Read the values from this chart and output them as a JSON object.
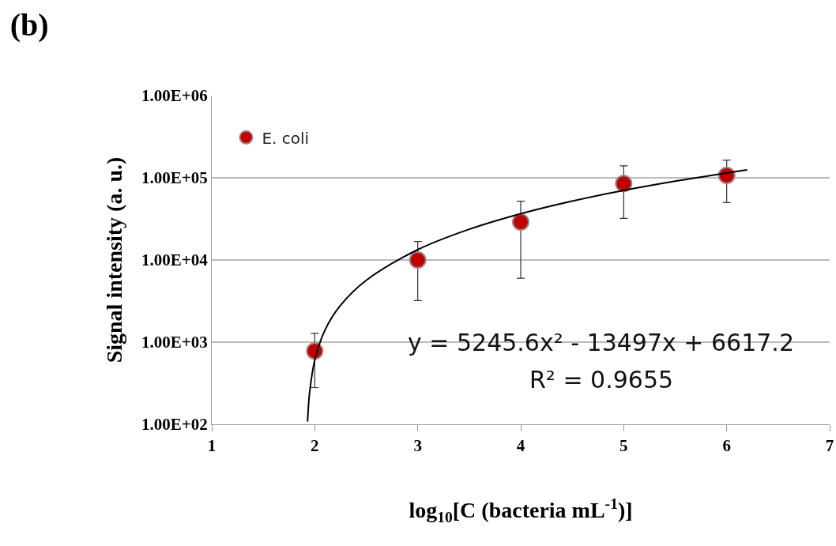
{
  "chart_data": {
    "type": "scatter",
    "title": "(b)",
    "xlabel": "log$_{10}$[C (bacteria mL$^{-1}$)]",
    "ylabel": "Signal intensity (a. u.)",
    "annotations": [
      "y = 5245.6x² - 13497x + 6617.2",
      "R² = 0.9655"
    ],
    "x": [
      2,
      3,
      4,
      5,
      6
    ],
    "series": [
      {
        "name": "E. coli",
        "color": "#c00000",
        "marker": "circle",
        "values": [
          780,
          10000,
          29000,
          85000,
          107000
        ],
        "errors": [
          [
            280,
            1280
          ],
          [
            3200,
            16800
          ],
          [
            6000,
            52000
          ],
          [
            32000,
            140000
          ],
          [
            50000,
            164000
          ]
        ]
      },
      {
        "type": "line",
        "marker": "none",
        "color": "#000000",
        "x": [
          1.93,
          1.94,
          1.95,
          2,
          2.1,
          2.25,
          2.5,
          3,
          3.5,
          4,
          4.5,
          5,
          5.5,
          6,
          6.2
        ],
        "values": [
          108,
          175,
          244,
          606,
          1407,
          2805,
          5660,
          13337,
          23636,
          36559,
          52104,
          70272,
          91063,
          114477,
          124577
        ]
      }
    ],
    "xlim": [
      1,
      7
    ],
    "xticks": [
      1,
      2,
      3,
      4,
      5,
      6,
      7
    ],
    "ylim": [
      100,
      1000000
    ],
    "yticks": [
      {
        "value": 100,
        "label": "1.00E+02"
      },
      {
        "value": 1000,
        "label": "1.00E+03"
      },
      {
        "value": 10000,
        "label": "1.00E+04"
      },
      {
        "value": 100000,
        "label": "1.00E+05"
      },
      {
        "value": 1000000,
        "label": "1.00E+06"
      }
    ],
    "log": "y",
    "grid": "y",
    "legend": "top left",
    "line_style": "solid"
  }
}
